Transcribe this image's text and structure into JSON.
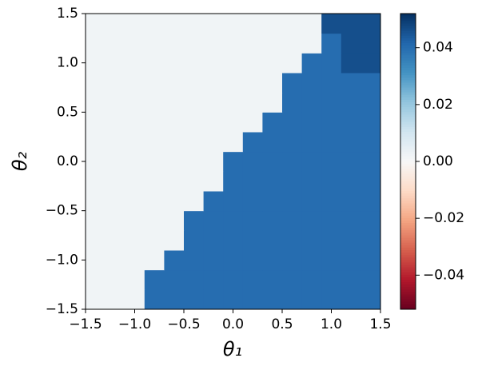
{
  "chart_data": {
    "type": "heatmap",
    "xlabel": "θ₁",
    "ylabel": "θ₂",
    "x": [
      -1.4,
      -1.2,
      -1.0,
      -0.8,
      -0.6,
      -0.4,
      -0.2,
      0.0,
      0.2,
      0.4,
      0.6,
      0.8,
      1.0,
      1.2,
      1.4
    ],
    "y": [
      -1.4,
      -1.2,
      -1.0,
      -0.8,
      -0.6,
      -0.4,
      -0.2,
      0.0,
      0.2,
      0.4,
      0.6,
      0.8,
      1.0,
      1.2,
      1.4
    ],
    "z": [
      [
        0.002,
        0.002,
        0.002,
        0.04,
        0.04,
        0.04,
        0.04,
        0.04,
        0.04,
        0.04,
        0.04,
        0.04,
        0.04,
        0.04,
        0.04
      ],
      [
        0.002,
        0.002,
        0.002,
        0.04,
        0.04,
        0.04,
        0.04,
        0.04,
        0.04,
        0.04,
        0.04,
        0.04,
        0.04,
        0.04,
        0.04
      ],
      [
        0.002,
        0.002,
        0.002,
        0.002,
        0.04,
        0.04,
        0.04,
        0.04,
        0.04,
        0.04,
        0.04,
        0.04,
        0.04,
        0.04,
        0.04
      ],
      [
        0.002,
        0.002,
        0.002,
        0.002,
        0.002,
        0.04,
        0.04,
        0.04,
        0.04,
        0.04,
        0.04,
        0.04,
        0.04,
        0.04,
        0.04
      ],
      [
        0.002,
        0.002,
        0.002,
        0.002,
        0.002,
        0.04,
        0.04,
        0.04,
        0.04,
        0.04,
        0.04,
        0.04,
        0.04,
        0.04,
        0.04
      ],
      [
        0.002,
        0.002,
        0.002,
        0.002,
        0.002,
        0.002,
        0.04,
        0.04,
        0.04,
        0.04,
        0.04,
        0.04,
        0.04,
        0.04,
        0.04
      ],
      [
        0.002,
        0.002,
        0.002,
        0.002,
        0.002,
        0.002,
        0.002,
        0.04,
        0.04,
        0.04,
        0.04,
        0.04,
        0.04,
        0.04,
        0.04
      ],
      [
        0.002,
        0.002,
        0.002,
        0.002,
        0.002,
        0.002,
        0.002,
        0.04,
        0.04,
        0.04,
        0.04,
        0.04,
        0.04,
        0.04,
        0.04
      ],
      [
        0.002,
        0.002,
        0.002,
        0.002,
        0.002,
        0.002,
        0.002,
        0.002,
        0.04,
        0.04,
        0.04,
        0.04,
        0.04,
        0.04,
        0.04
      ],
      [
        0.002,
        0.002,
        0.002,
        0.002,
        0.002,
        0.002,
        0.002,
        0.002,
        0.002,
        0.04,
        0.04,
        0.04,
        0.04,
        0.04,
        0.04
      ],
      [
        0.002,
        0.002,
        0.002,
        0.002,
        0.002,
        0.002,
        0.002,
        0.002,
        0.002,
        0.002,
        0.04,
        0.04,
        0.04,
        0.04,
        0.04
      ],
      [
        0.002,
        0.002,
        0.002,
        0.002,
        0.002,
        0.002,
        0.002,
        0.002,
        0.002,
        0.002,
        0.04,
        0.04,
        0.04,
        0.04,
        0.04
      ],
      [
        0.002,
        0.002,
        0.002,
        0.002,
        0.002,
        0.002,
        0.002,
        0.002,
        0.002,
        0.002,
        0.002,
        0.04,
        0.04,
        0.046,
        0.046
      ],
      [
        0.002,
        0.002,
        0.002,
        0.002,
        0.002,
        0.002,
        0.002,
        0.002,
        0.002,
        0.002,
        0.002,
        0.002,
        0.04,
        0.046,
        0.046
      ],
      [
        0.002,
        0.002,
        0.002,
        0.002,
        0.002,
        0.002,
        0.002,
        0.002,
        0.002,
        0.002,
        0.002,
        0.002,
        0.046,
        0.046,
        0.046
      ]
    ],
    "xlim": [
      -1.5,
      1.5
    ],
    "ylim": [
      -1.5,
      1.5
    ],
    "xticks": [
      {
        "value": -1.5,
        "label": "−1.5"
      },
      {
        "value": -1.0,
        "label": "−1.0"
      },
      {
        "value": -0.5,
        "label": "−0.5"
      },
      {
        "value": 0.0,
        "label": "0.0"
      },
      0.5,
      {
        "value": 1.0,
        "label": "1.0"
      },
      1.5
    ],
    "yticks": [
      {
        "value": -1.5,
        "label": "−1.5"
      },
      {
        "value": -1.0,
        "label": "−1.0"
      },
      {
        "value": -0.5,
        "label": "−0.5"
      },
      {
        "value": 0.0,
        "label": "0.0"
      },
      0.5,
      {
        "value": 1.0,
        "label": "1.0"
      },
      1.5
    ],
    "colormap": "RdBu",
    "clim": [
      -0.052,
      0.052
    ],
    "cticks": [
      {
        "value": -0.04,
        "label": "−0.04"
      },
      {
        "value": -0.02,
        "label": "−0.02"
      },
      {
        "value": 0.0,
        "label": "0.00"
      },
      {
        "value": 0.02,
        "label": "0.02"
      },
      {
        "value": 0.04,
        "label": "0.04"
      }
    ]
  }
}
